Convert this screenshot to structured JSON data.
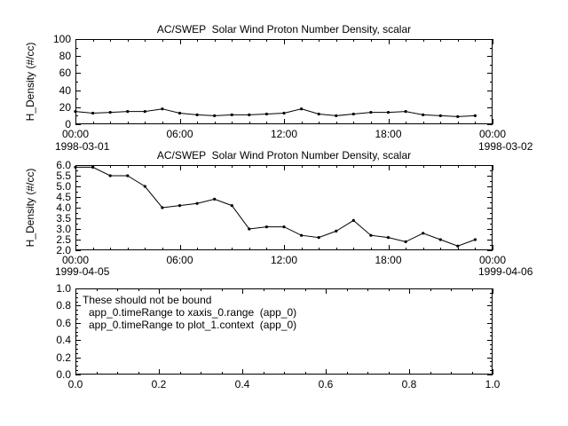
{
  "accent_color": "#000000",
  "background_color": "#ffffff",
  "chart_data": [
    {
      "type": "line",
      "title": "AC/SWEP  Solar Wind Proton Number Density, scalar",
      "ylabel": "H_Density (#/cc)",
      "x_start_label": "1998-03-01",
      "x_end_label": "1998-03-02",
      "xlim": [
        0,
        24
      ],
      "ylim": [
        0,
        100
      ],
      "x_major": [
        0,
        6,
        12,
        18,
        24
      ],
      "x_major_labels": [
        "00:00",
        "06:00",
        "12:00",
        "18:00",
        "00:00"
      ],
      "x_minor_step": 1,
      "y_major": [
        0,
        20,
        40,
        60,
        80,
        100
      ],
      "y_major_labels": [
        "0",
        "20",
        "40",
        "60",
        "80",
        "100"
      ],
      "y_minor_step": 10,
      "x": [
        0,
        1,
        2,
        3,
        4,
        5,
        6,
        7,
        8,
        9,
        10,
        11,
        12,
        13,
        14,
        15,
        16,
        17,
        18,
        19,
        20,
        21,
        22,
        23
      ],
      "y": [
        15,
        13,
        14,
        15,
        15,
        18,
        13,
        11,
        10,
        11,
        11,
        12,
        13,
        18,
        12,
        10,
        12,
        14,
        14,
        15,
        11,
        10,
        9,
        10
      ]
    },
    {
      "type": "line",
      "title": "AC/SWEP  Solar Wind Proton Number Density, scalar",
      "ylabel": "H_Density (#/cc)",
      "x_start_label": "1999-04-05",
      "x_end_label": "1999-04-06",
      "xlim": [
        0,
        24
      ],
      "ylim": [
        2.0,
        6.0
      ],
      "x_major": [
        0,
        6,
        12,
        18,
        24
      ],
      "x_major_labels": [
        "00:00",
        "06:00",
        "12:00",
        "18:00",
        "00:00"
      ],
      "x_minor_step": 1,
      "y_major": [
        2.0,
        2.5,
        3.0,
        3.5,
        4.0,
        4.5,
        5.0,
        5.5,
        6.0
      ],
      "y_major_labels": [
        "2.0",
        "2.5",
        "3.0",
        "3.5",
        "4.0",
        "4.5",
        "5.0",
        "5.5",
        "6.0"
      ],
      "y_minor_step": 0.25,
      "x": [
        0,
        1,
        2,
        3,
        4,
        5,
        6,
        7,
        8,
        9,
        10,
        11,
        12,
        13,
        14,
        15,
        16,
        17,
        18,
        19,
        20,
        21,
        22,
        23
      ],
      "y": [
        5.9,
        5.9,
        5.5,
        5.5,
        5.0,
        4.0,
        4.1,
        4.2,
        4.4,
        4.1,
        3.0,
        3.1,
        3.1,
        2.7,
        2.6,
        2.9,
        3.4,
        2.7,
        2.6,
        2.4,
        2.8,
        2.5,
        2.2,
        2.5
      ]
    },
    {
      "type": "empty",
      "xlim": [
        0,
        1
      ],
      "ylim": [
        0,
        1
      ],
      "x_major": [
        0,
        0.2,
        0.4,
        0.6,
        0.8,
        1.0
      ],
      "x_major_labels": [
        "0.0",
        "0.2",
        "0.4",
        "0.6",
        "0.8",
        "1.0"
      ],
      "x_minor_step": 0.05,
      "y_major": [
        0,
        0.2,
        0.4,
        0.6,
        0.8,
        1.0
      ],
      "y_major_labels": [
        "0.0",
        "0.2",
        "0.4",
        "0.6",
        "0.8",
        "1.0"
      ],
      "y_minor_step": 0.05,
      "x": [],
      "y": [],
      "annotations": [
        "These should not be bound",
        "app_0.timeRange to xaxis_0.range  (app_0)",
        "app_0.timeRange to plot_1.context  (app_0)"
      ]
    }
  ]
}
